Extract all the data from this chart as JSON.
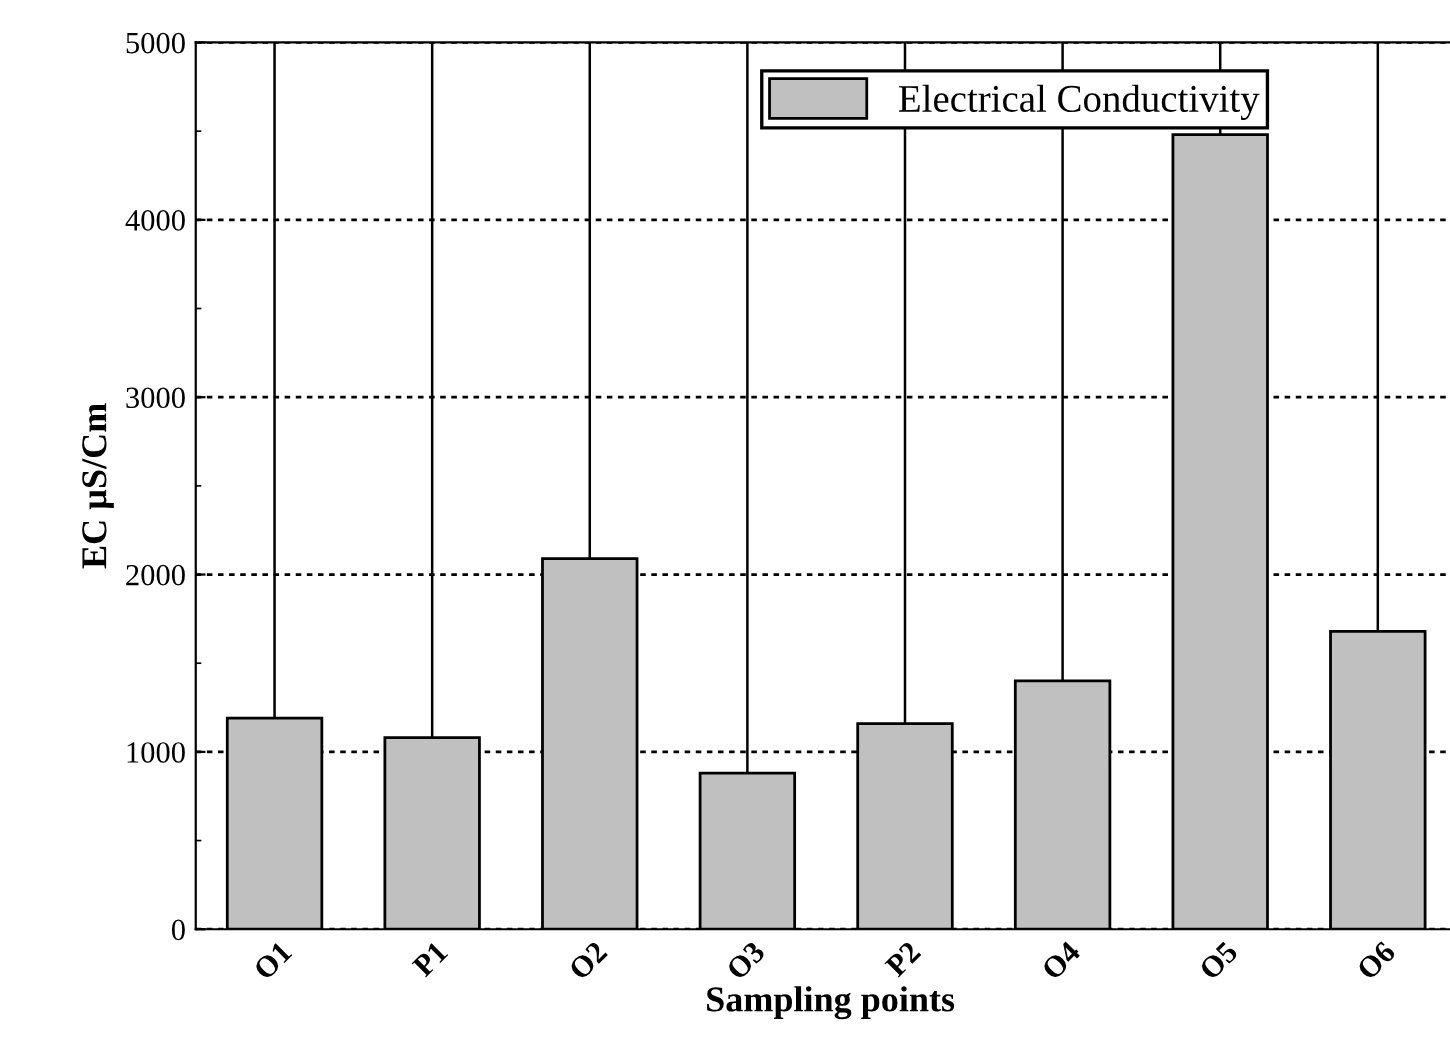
{
  "chart_data": {
    "type": "bar",
    "xlabel": "Sampling points",
    "ylabel": "EC µS/Cm",
    "categories": [
      "O1",
      "P1",
      "O2",
      "O3",
      "P2",
      "O4",
      "O5",
      "O6"
    ],
    "series": [
      {
        "name": "Electrical Conductivity",
        "color": "#c0c0c0",
        "values": [
          1190,
          1080,
          2090,
          880,
          1160,
          1400,
          4480,
          1680
        ]
      }
    ],
    "ylim": [
      0,
      5000
    ],
    "yticks": [
      0,
      1000,
      2000,
      3000,
      4000,
      5000
    ],
    "grid": true,
    "legend": "top right"
  }
}
